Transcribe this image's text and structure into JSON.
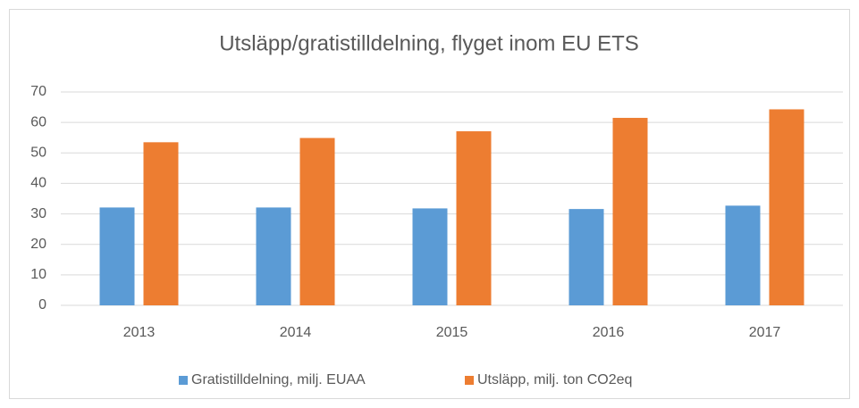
{
  "chart_data": {
    "type": "bar",
    "title": "Utsläpp/gratistilldelning, flyget inom EU ETS",
    "categories": [
      "2013",
      "2014",
      "2015",
      "2016",
      "2017"
    ],
    "series": [
      {
        "name": "Gratistilldelning, milj. EUAA",
        "color": "#5b9bd5",
        "values": [
          32.1,
          32.1,
          31.8,
          31.6,
          32.7
        ]
      },
      {
        "name": "Utsläpp, milj. ton CO2eq",
        "color": "#ed7d31",
        "values": [
          53.5,
          54.9,
          57.1,
          61.5,
          64.3
        ]
      }
    ],
    "ylim": [
      0,
      70
    ],
    "yticks": [
      0,
      10,
      20,
      30,
      40,
      50,
      60,
      70
    ],
    "grid": true,
    "legend": "bottom"
  }
}
